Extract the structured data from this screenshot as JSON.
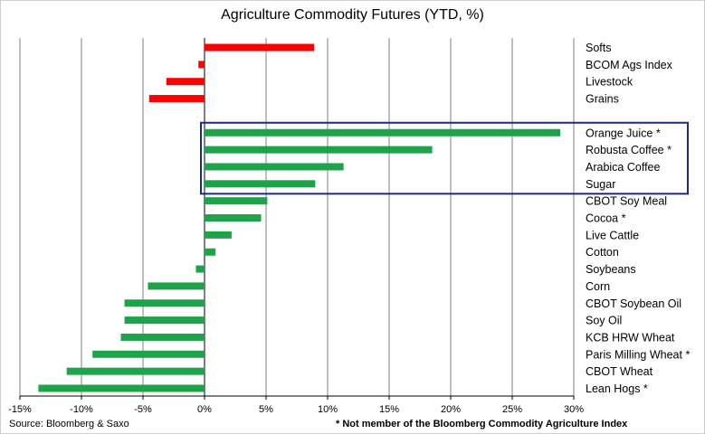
{
  "chart_data": {
    "type": "bar",
    "orientation": "horizontal",
    "title": "Agriculture Commodity Futures (YTD, %)",
    "xlabel": "",
    "ylabel": "",
    "xlim": [
      -15,
      30
    ],
    "grid": true,
    "tick_labels": [
      "-15%",
      "-10%",
      "-5%",
      "0%",
      "5%",
      "10%",
      "15%",
      "20%",
      "25%",
      "30%"
    ],
    "categories": [
      "Softs",
      "BCOM Ags Index",
      "Livestock",
      "Grains",
      "",
      "Orange Juice *",
      "Robusta Coffee *",
      "Arabica Coffee",
      "Sugar",
      "CBOT Soy Meal",
      "Cocoa *",
      "Live Cattle",
      "Cotton",
      "Soybeans",
      "Corn",
      "CBOT Soybean Oil",
      "Soy Oil",
      "KCB HRW Wheat",
      "Paris Milling Wheat *",
      "CBOT Wheat",
      "Lean Hogs *"
    ],
    "values": [
      8.9,
      -0.5,
      -3.1,
      -4.5,
      null,
      28.9,
      18.5,
      11.3,
      9.0,
      5.1,
      4.6,
      2.2,
      0.9,
      -0.7,
      -4.6,
      -6.5,
      -6.5,
      -6.8,
      -9.1,
      -11.2,
      -13.5
    ],
    "bar_colors": [
      "#ff0000",
      "#ff0000",
      "#ff0000",
      "#ff0000",
      null,
      "#1fa34a",
      "#1fa34a",
      "#1fa34a",
      "#1fa34a",
      "#1fa34a",
      "#1fa34a",
      "#1fa34a",
      "#1fa34a",
      "#1fa34a",
      "#1fa34a",
      "#1fa34a",
      "#1fa34a",
      "#1fa34a",
      "#1fa34a",
      "#1fa34a",
      "#1fa34a"
    ],
    "highlight_box": {
      "color": "#1a2a8a",
      "categories": [
        "Orange Juice *",
        "Robusta Coffee *",
        "Arabica Coffee",
        "Sugar"
      ]
    }
  },
  "footer": {
    "source": "Source: Bloomberg & Saxo",
    "note": "* Not member of the Bloomberg Commodity Agriculture Index"
  },
  "colors": {
    "grid": "#808080",
    "axis": "#000000"
  }
}
